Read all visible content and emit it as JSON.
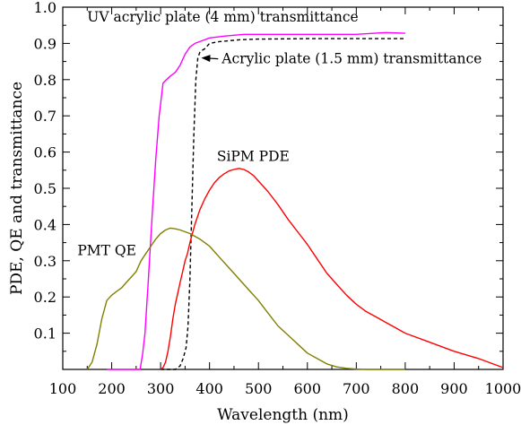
{
  "chart_data": {
    "type": "line",
    "title": "",
    "xlabel": "Wavelength (nm)",
    "ylabel": "PDE, QE and transmittance",
    "xlim": [
      100,
      1000
    ],
    "ylim": [
      0,
      1.0
    ],
    "x_ticks": [
      "100",
      "200",
      "300",
      "400",
      "500",
      "600",
      "700",
      "800",
      "900",
      "1000"
    ],
    "y_ticks": [
      "0.1",
      "0.2",
      "0.3",
      "0.4",
      "0.5",
      "0.6",
      "0.7",
      "0.8",
      "0.9",
      "1.0"
    ],
    "grid": false,
    "series": [
      {
        "name": "UV acrylic plate (4 mm) transmittance",
        "color": "#ff00ff",
        "dash": false,
        "x": [
          190,
          258,
          263,
          268,
          275,
          283,
          290,
          297,
          305,
          312,
          320,
          330,
          340,
          350,
          360,
          370,
          380,
          390,
          400,
          430,
          470,
          500,
          560,
          600,
          700,
          760,
          800
        ],
        "y": [
          0.0,
          0.0,
          0.04,
          0.1,
          0.25,
          0.43,
          0.58,
          0.7,
          0.79,
          0.8,
          0.81,
          0.82,
          0.84,
          0.87,
          0.89,
          0.9,
          0.905,
          0.91,
          0.915,
          0.92,
          0.925,
          0.925,
          0.925,
          0.925,
          0.925,
          0.93,
          0.928
        ]
      },
      {
        "name": "Acrylic plate (1.5 mm) transmittance",
        "color": "#000000",
        "dash": true,
        "x": [
          300,
          330,
          340,
          346,
          352,
          356,
          360,
          364,
          368,
          372,
          376,
          380,
          384,
          390,
          400,
          420,
          460,
          500,
          600,
          700,
          800
        ],
        "y": [
          0.0,
          0.0,
          0.01,
          0.03,
          0.06,
          0.12,
          0.25,
          0.45,
          0.65,
          0.8,
          0.86,
          0.875,
          0.88,
          0.885,
          0.9,
          0.905,
          0.91,
          0.912,
          0.913,
          0.913,
          0.913
        ]
      },
      {
        "name": "SiPM PDE",
        "color": "#ff0000",
        "dash": false,
        "x": [
          300,
          305,
          310,
          315,
          320,
          325,
          330,
          335,
          340,
          345,
          350,
          355,
          360,
          370,
          380,
          390,
          400,
          410,
          420,
          430,
          440,
          450,
          460,
          470,
          480,
          490,
          500,
          520,
          540,
          560,
          580,
          600,
          620,
          640,
          660,
          680,
          700,
          720,
          740,
          760,
          780,
          800,
          850,
          900,
          950,
          1000
        ],
        "y": [
          0.0,
          0.005,
          0.02,
          0.05,
          0.09,
          0.14,
          0.18,
          0.21,
          0.24,
          0.27,
          0.3,
          0.32,
          0.35,
          0.4,
          0.44,
          0.47,
          0.495,
          0.515,
          0.53,
          0.54,
          0.548,
          0.552,
          0.555,
          0.552,
          0.545,
          0.535,
          0.52,
          0.49,
          0.455,
          0.415,
          0.38,
          0.345,
          0.305,
          0.265,
          0.235,
          0.205,
          0.18,
          0.16,
          0.145,
          0.13,
          0.115,
          0.1,
          0.075,
          0.05,
          0.03,
          0.005
        ]
      },
      {
        "name": "PMT QE",
        "color": "#808000",
        "dash": false,
        "x": [
          150,
          160,
          170,
          180,
          190,
          200,
          210,
          220,
          230,
          240,
          250,
          260,
          270,
          280,
          290,
          300,
          310,
          320,
          330,
          340,
          350,
          360,
          380,
          400,
          420,
          440,
          460,
          480,
          500,
          520,
          540,
          560,
          580,
          600,
          620,
          640,
          660,
          680,
          700,
          720,
          750,
          800
        ],
        "y": [
          0.0,
          0.02,
          0.07,
          0.14,
          0.19,
          0.205,
          0.215,
          0.225,
          0.24,
          0.255,
          0.27,
          0.3,
          0.32,
          0.34,
          0.36,
          0.375,
          0.385,
          0.39,
          0.388,
          0.385,
          0.38,
          0.375,
          0.36,
          0.34,
          0.31,
          0.28,
          0.25,
          0.22,
          0.19,
          0.155,
          0.12,
          0.095,
          0.07,
          0.045,
          0.03,
          0.015,
          0.007,
          0.003,
          0.001,
          0.0,
          0.0,
          0.0
        ]
      }
    ],
    "annotations": [
      {
        "text": "UV acrylic plate (4 mm) transmittance",
        "x": 150,
        "y": 0.96
      },
      {
        "text": "Acrylic plate (1.5 mm) transmittance",
        "x": 425,
        "y": 0.845,
        "arrow_to": [
          385,
          0.86
        ]
      },
      {
        "text": "SiPM PDE",
        "x": 415,
        "y": 0.575
      },
      {
        "text": "PMT QE",
        "x": 130,
        "y": 0.315
      }
    ]
  }
}
